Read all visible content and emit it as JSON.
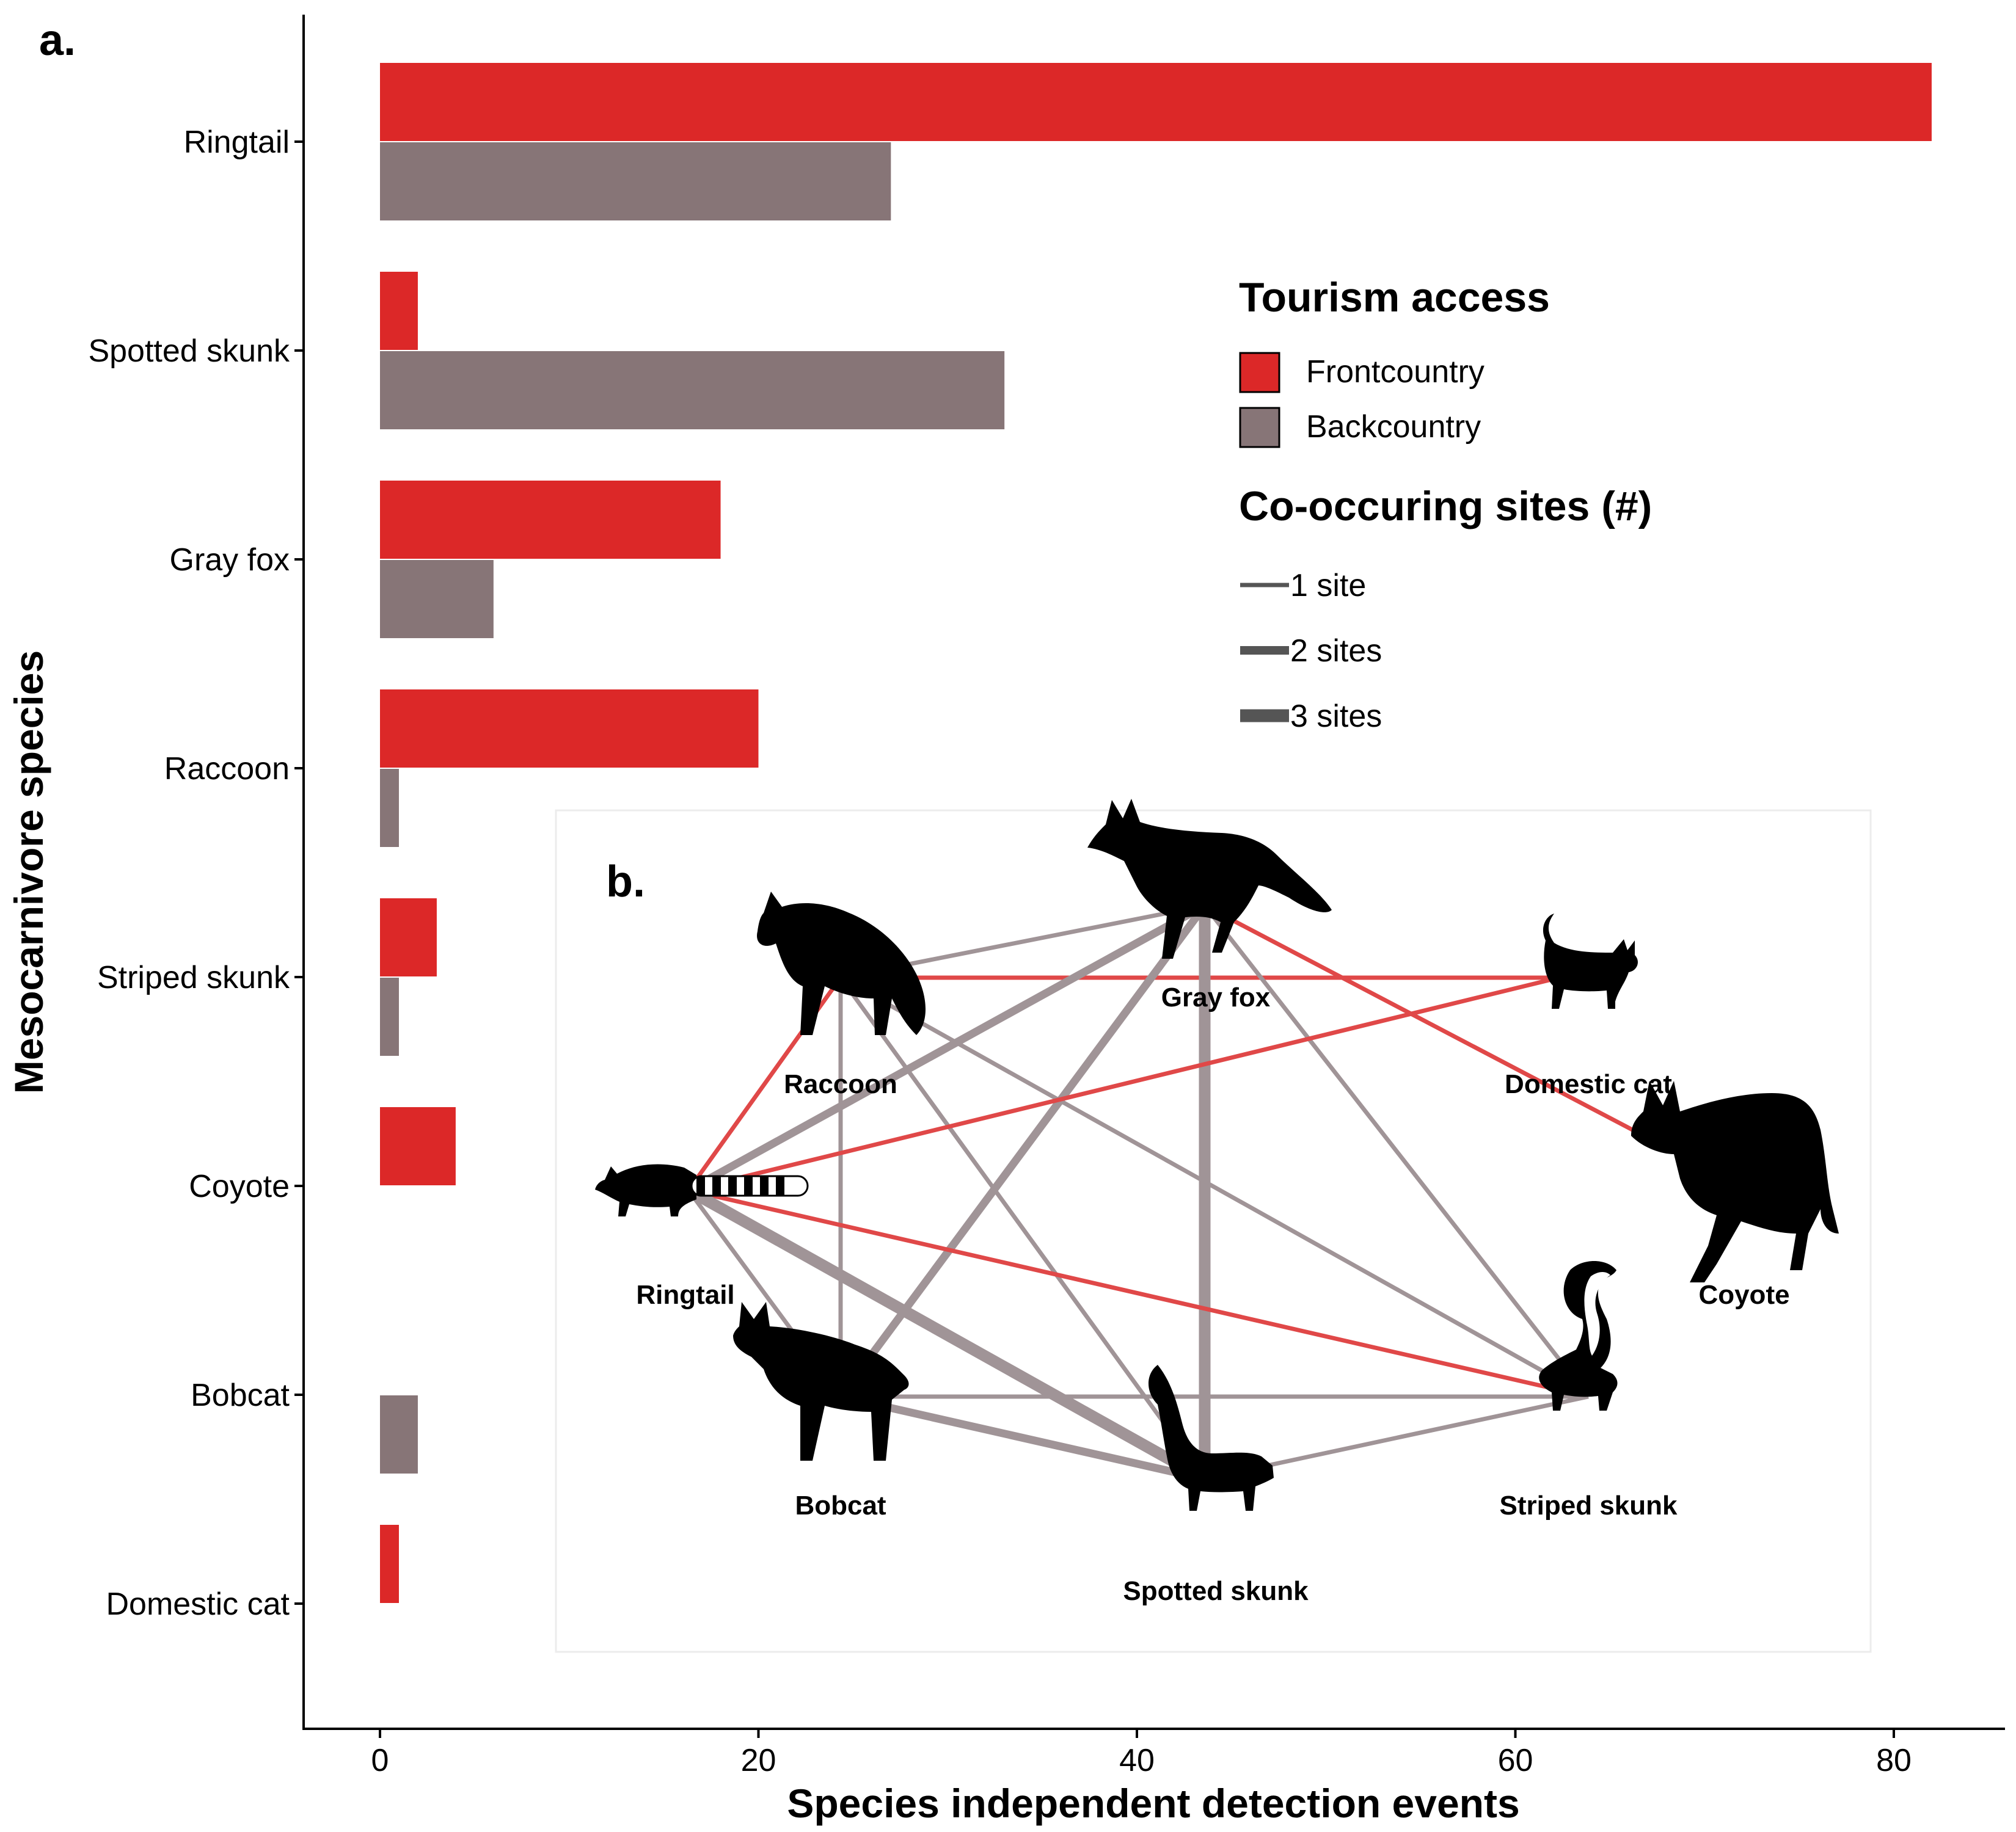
{
  "panel_a_label": "a.",
  "panel_b_label": "b.",
  "chart_data": [
    {
      "type": "bar",
      "orientation": "horizontal",
      "categories": [
        "Ringtail",
        "Spotted skunk",
        "Gray fox",
        "Raccoon",
        "Striped skunk",
        "Coyote",
        "Bobcat",
        "Domestic cat"
      ],
      "series": [
        {
          "name": "Frontcountry",
          "color": "#dc2828",
          "values": [
            82,
            2,
            18,
            20,
            3,
            4,
            0,
            1
          ]
        },
        {
          "name": "Backcountry",
          "color": "#877577",
          "values": [
            27,
            33,
            6,
            1,
            1,
            0,
            2,
            0
          ]
        }
      ],
      "xlabel": "Species independent detection events",
      "ylabel": "Mesocarnivore species",
      "xticks": [
        0,
        20,
        40,
        60,
        80
      ],
      "xlim": [
        -4,
        86
      ],
      "grid": false,
      "legend": {
        "placement": "right",
        "fill_title": "Tourism access",
        "fill_items": [
          "Frontcountry",
          "Backcountry"
        ],
        "width_title": "Co-occuring sites (#)",
        "width_items": [
          {
            "label": "1 site",
            "sites": 1
          },
          {
            "label": "2 sites",
            "sites": 2
          },
          {
            "label": "3 sites",
            "sites": 3
          }
        ]
      }
    },
    {
      "type": "network",
      "nodes": [
        "Gray fox",
        "Raccoon",
        "Domestic cat",
        "Ringtail",
        "Coyote",
        "Bobcat",
        "Spotted skunk",
        "Striped skunk"
      ],
      "edges": [
        {
          "source": "Raccoon",
          "target": "Gray fox",
          "access": "Backcountry",
          "sites": 1
        },
        {
          "source": "Raccoon",
          "target": "Domestic cat",
          "access": "Frontcountry",
          "sites": 1
        },
        {
          "source": "Raccoon",
          "target": "Ringtail",
          "access": "Frontcountry",
          "sites": 1
        },
        {
          "source": "Raccoon",
          "target": "Bobcat",
          "access": "Backcountry",
          "sites": 1
        },
        {
          "source": "Raccoon",
          "target": "Spotted skunk",
          "access": "Backcountry",
          "sites": 1
        },
        {
          "source": "Raccoon",
          "target": "Striped skunk",
          "access": "Backcountry",
          "sites": 1
        },
        {
          "source": "Gray fox",
          "target": "Coyote",
          "access": "Frontcountry",
          "sites": 1
        },
        {
          "source": "Gray fox",
          "target": "Ringtail",
          "access": "Backcountry",
          "sites": 2
        },
        {
          "source": "Gray fox",
          "target": "Bobcat",
          "access": "Backcountry",
          "sites": 2
        },
        {
          "source": "Gray fox",
          "target": "Spotted skunk",
          "access": "Backcountry",
          "sites": 3
        },
        {
          "source": "Gray fox",
          "target": "Striped skunk",
          "access": "Backcountry",
          "sites": 1
        },
        {
          "source": "Ringtail",
          "target": "Domestic cat",
          "access": "Frontcountry",
          "sites": 1
        },
        {
          "source": "Ringtail",
          "target": "Striped skunk",
          "access": "Frontcountry",
          "sites": 1
        },
        {
          "source": "Ringtail",
          "target": "Bobcat",
          "access": "Backcountry",
          "sites": 1
        },
        {
          "source": "Ringtail",
          "target": "Spotted skunk",
          "access": "Backcountry",
          "sites": 3
        },
        {
          "source": "Bobcat",
          "target": "Striped skunk",
          "access": "Backcountry",
          "sites": 1
        },
        {
          "source": "Bobcat",
          "target": "Spotted skunk",
          "access": "Backcountry",
          "sites": 2
        },
        {
          "source": "Spotted skunk",
          "target": "Striped skunk",
          "access": "Backcountry",
          "sites": 1
        }
      ]
    }
  ]
}
